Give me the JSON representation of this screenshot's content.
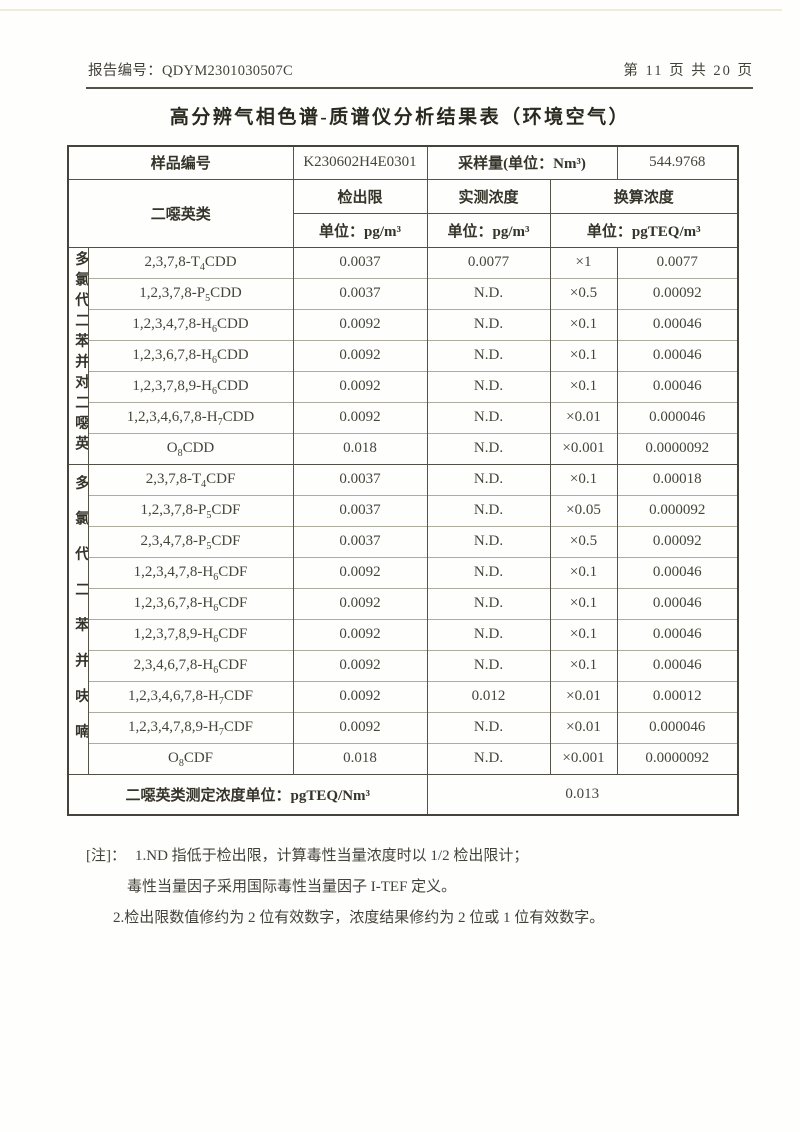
{
  "page_header": {
    "report_no_label": "报告编号：",
    "report_no": "QDYM2301030507C",
    "page_info": "第 11 页 共 20 页"
  },
  "title": "高分辨气相色谱-质谱仪分析结果表（环境空气）",
  "table": {
    "sample": {
      "id_label": "样品编号",
      "id_value": "K230602H4E0301",
      "volume_label": "采样量(单位：Nm³)",
      "volume_value": "544.9768"
    },
    "columns": {
      "analyte_class": "二噁英类",
      "detection_limit": "检出限",
      "measured": "实测浓度",
      "converted": "换算浓度",
      "detection_limit_unit": "单位：pg/m³",
      "measured_unit": "单位：pg/m³",
      "converted_unit": "单位：pgTEQ/m³"
    },
    "groups": [
      {
        "label": "多氯代二苯并对二噁英",
        "row_count": 7
      },
      {
        "label": "多氯代二苯并呋喃",
        "row_count": 10
      }
    ],
    "rows": [
      {
        "name_pre": "2,3,7,8-T",
        "name_sub": "4",
        "name_post": "CDD",
        "limit": "0.0037",
        "measured": "0.0077",
        "factor": "×1",
        "converted": "0.0077"
      },
      {
        "name_pre": "1,2,3,7,8-P",
        "name_sub": "5",
        "name_post": "CDD",
        "limit": "0.0037",
        "measured": "N.D.",
        "factor": "×0.5",
        "converted": "0.00092"
      },
      {
        "name_pre": "1,2,3,4,7,8-H",
        "name_sub": "6",
        "name_post": "CDD",
        "limit": "0.0092",
        "measured": "N.D.",
        "factor": "×0.1",
        "converted": "0.00046"
      },
      {
        "name_pre": "1,2,3,6,7,8-H",
        "name_sub": "6",
        "name_post": "CDD",
        "limit": "0.0092",
        "measured": "N.D.",
        "factor": "×0.1",
        "converted": "0.00046"
      },
      {
        "name_pre": "1,2,3,7,8,9-H",
        "name_sub": "6",
        "name_post": "CDD",
        "limit": "0.0092",
        "measured": "N.D.",
        "factor": "×0.1",
        "converted": "0.00046"
      },
      {
        "name_pre": "1,2,3,4,6,7,8-H",
        "name_sub": "7",
        "name_post": "CDD",
        "limit": "0.0092",
        "measured": "N.D.",
        "factor": "×0.01",
        "converted": "0.000046"
      },
      {
        "name_pre": "O",
        "name_sub": "8",
        "name_post": "CDD",
        "limit": "0.018",
        "measured": "N.D.",
        "factor": "×0.001",
        "converted": "0.0000092"
      },
      {
        "name_pre": "2,3,7,8-T",
        "name_sub": "4",
        "name_post": "CDF",
        "limit": "0.0037",
        "measured": "N.D.",
        "factor": "×0.1",
        "converted": "0.00018"
      },
      {
        "name_pre": "1,2,3,7,8-P",
        "name_sub": "5",
        "name_post": "CDF",
        "limit": "0.0037",
        "measured": "N.D.",
        "factor": "×0.05",
        "converted": "0.000092"
      },
      {
        "name_pre": "2,3,4,7,8-P",
        "name_sub": "5",
        "name_post": "CDF",
        "limit": "0.0037",
        "measured": "N.D.",
        "factor": "×0.5",
        "converted": "0.00092"
      },
      {
        "name_pre": "1,2,3,4,7,8-H",
        "name_sub": "6",
        "name_post": "CDF",
        "limit": "0.0092",
        "measured": "N.D.",
        "factor": "×0.1",
        "converted": "0.00046"
      },
      {
        "name_pre": "1,2,3,6,7,8-H",
        "name_sub": "6",
        "name_post": "CDF",
        "limit": "0.0092",
        "measured": "N.D.",
        "factor": "×0.1",
        "converted": "0.00046"
      },
      {
        "name_pre": "1,2,3,7,8,9-H",
        "name_sub": "6",
        "name_post": "CDF",
        "limit": "0.0092",
        "measured": "N.D.",
        "factor": "×0.1",
        "converted": "0.00046"
      },
      {
        "name_pre": "2,3,4,6,7,8-H",
        "name_sub": "6",
        "name_post": "CDF",
        "limit": "0.0092",
        "measured": "N.D.",
        "factor": "×0.1",
        "converted": "0.00046"
      },
      {
        "name_pre": "1,2,3,4,6,7,8-H",
        "name_sub": "7",
        "name_post": "CDF",
        "limit": "0.0092",
        "measured": "0.012",
        "factor": "×0.01",
        "converted": "0.00012"
      },
      {
        "name_pre": "1,2,3,4,7,8,9-H",
        "name_sub": "7",
        "name_post": "CDF",
        "limit": "0.0092",
        "measured": "N.D.",
        "factor": "×0.01",
        "converted": "0.000046"
      },
      {
        "name_pre": "O",
        "name_sub": "8",
        "name_post": "CDF",
        "limit": "0.018",
        "measured": "N.D.",
        "factor": "×0.001",
        "converted": "0.0000092"
      }
    ],
    "footer": {
      "label": "二噁英类测定浓度单位：pgTEQ/Nm³",
      "value": "0.013"
    }
  },
  "notes": {
    "prefix": "[注]：",
    "line1": "1.ND 指低于检出限，计算毒性当量浓度时以 1/2 检出限计；",
    "line2": "毒性当量因子采用国际毒性当量因子 I-TEF 定义。",
    "line3": "2.检出限数值修约为 2 位有效数字，浓度结果修约为 2 位或 1 位有效数字。"
  }
}
